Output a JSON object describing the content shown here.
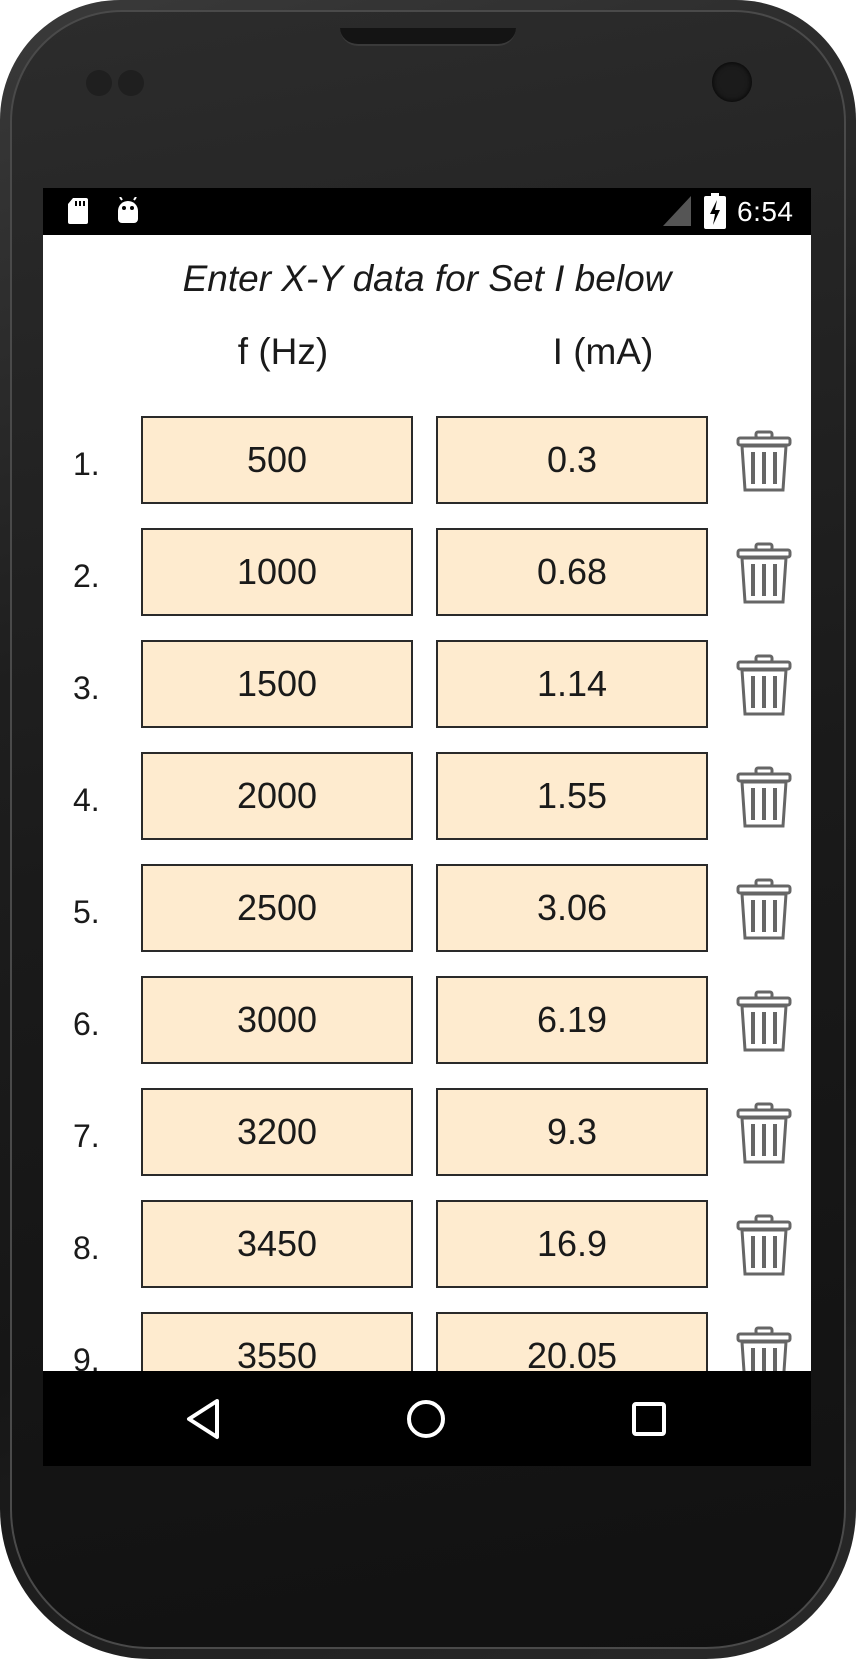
{
  "status_bar": {
    "time": "6:54",
    "icons": [
      "sd-card-icon",
      "android-debug-icon",
      "signal-icon",
      "battery-charging-icon"
    ]
  },
  "header": {
    "title": "Enter X-Y data for Set I below",
    "x_label": "f (Hz)",
    "y_label": "I (mA)"
  },
  "rows": [
    {
      "num": "1.",
      "x": "500",
      "y": "0.3"
    },
    {
      "num": "2.",
      "x": "1000",
      "y": "0.68"
    },
    {
      "num": "3.",
      "x": "1500",
      "y": "1.14"
    },
    {
      "num": "4.",
      "x": "2000",
      "y": "1.55"
    },
    {
      "num": "5.",
      "x": "2500",
      "y": "3.06"
    },
    {
      "num": "6.",
      "x": "3000",
      "y": "6.19"
    },
    {
      "num": "7.",
      "x": "3200",
      "y": "9.3"
    },
    {
      "num": "8.",
      "x": "3450",
      "y": "16.9"
    },
    {
      "num": "9.",
      "x": "3550",
      "y": "20.05"
    }
  ],
  "colors": {
    "cell_bg": "#feebcf",
    "cell_border": "#2a2a2a",
    "bar_bg": "#000000"
  },
  "nav_bar": {
    "icons": [
      "back-icon",
      "home-icon",
      "recent-apps-icon"
    ]
  }
}
